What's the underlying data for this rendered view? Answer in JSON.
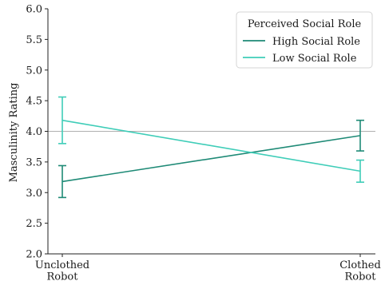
{
  "chart_data": {
    "type": "line",
    "title": "",
    "xlabel": "",
    "ylabel": "Masculinity Rating",
    "categories": [
      [
        "Unclothed",
        "Robot"
      ],
      [
        "Clothed",
        "Robot"
      ]
    ],
    "ylim": [
      2.0,
      6.0
    ],
    "yticks": [
      "2.0",
      "2.5",
      "3.0",
      "3.5",
      "4.0",
      "4.5",
      "5.0",
      "5.5",
      "6.0"
    ],
    "reference_line": 4.0,
    "reference_color": "#b0b0b0",
    "legend": {
      "title": "Perceived Social Role",
      "position": "upper-right"
    },
    "series": [
      {
        "name": "High Social Role",
        "color": "#1e8a76",
        "values": [
          3.18,
          3.93
        ],
        "error": [
          0.26,
          0.25
        ]
      },
      {
        "name": "Low Social Role",
        "color": "#3fcdb8",
        "values": [
          4.18,
          3.35
        ],
        "error": [
          0.38,
          0.18
        ]
      }
    ]
  }
}
